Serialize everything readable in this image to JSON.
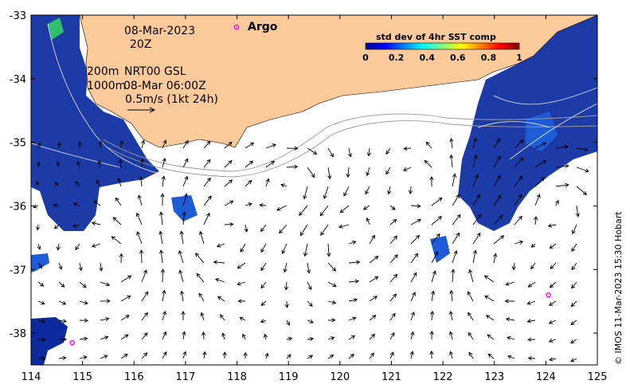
{
  "map": {
    "date_label": "08-Mar-2023",
    "time_label": "20Z",
    "depth_200": "200m",
    "depth_1000": "1000m",
    "nrt_label": "NRT00 GSL",
    "nrt_time": "08-Mar 06:00Z",
    "scale_label": "0.5m/s (1kt 24h)",
    "argo_label": "Argo",
    "credit": "© IMOS 11-Mar-2023 15:30 Hobart",
    "colorbar": {
      "title": "std dev of 4hr SST comp",
      "ticks": [
        "0",
        "0.2",
        "0.4",
        "0.6",
        "0.8",
        "1"
      ]
    },
    "x_ticks": [
      "114",
      "115",
      "116",
      "117",
      "118",
      "119",
      "120",
      "121",
      "122",
      "123",
      "124",
      "125"
    ],
    "y_ticks": [
      "-33",
      "-34",
      "-35",
      "-36",
      "-37",
      "-38"
    ],
    "argo_floats": [
      {
        "lon": 114.8,
        "lat": -38.15
      },
      {
        "lon": 124.05,
        "lat": -37.4
      }
    ],
    "colors": {
      "land": "#fdca9b",
      "sst_dark": "#0a2a9e",
      "sst_mid": "#1e5bd6",
      "argo": "#ff00ff"
    }
  }
}
